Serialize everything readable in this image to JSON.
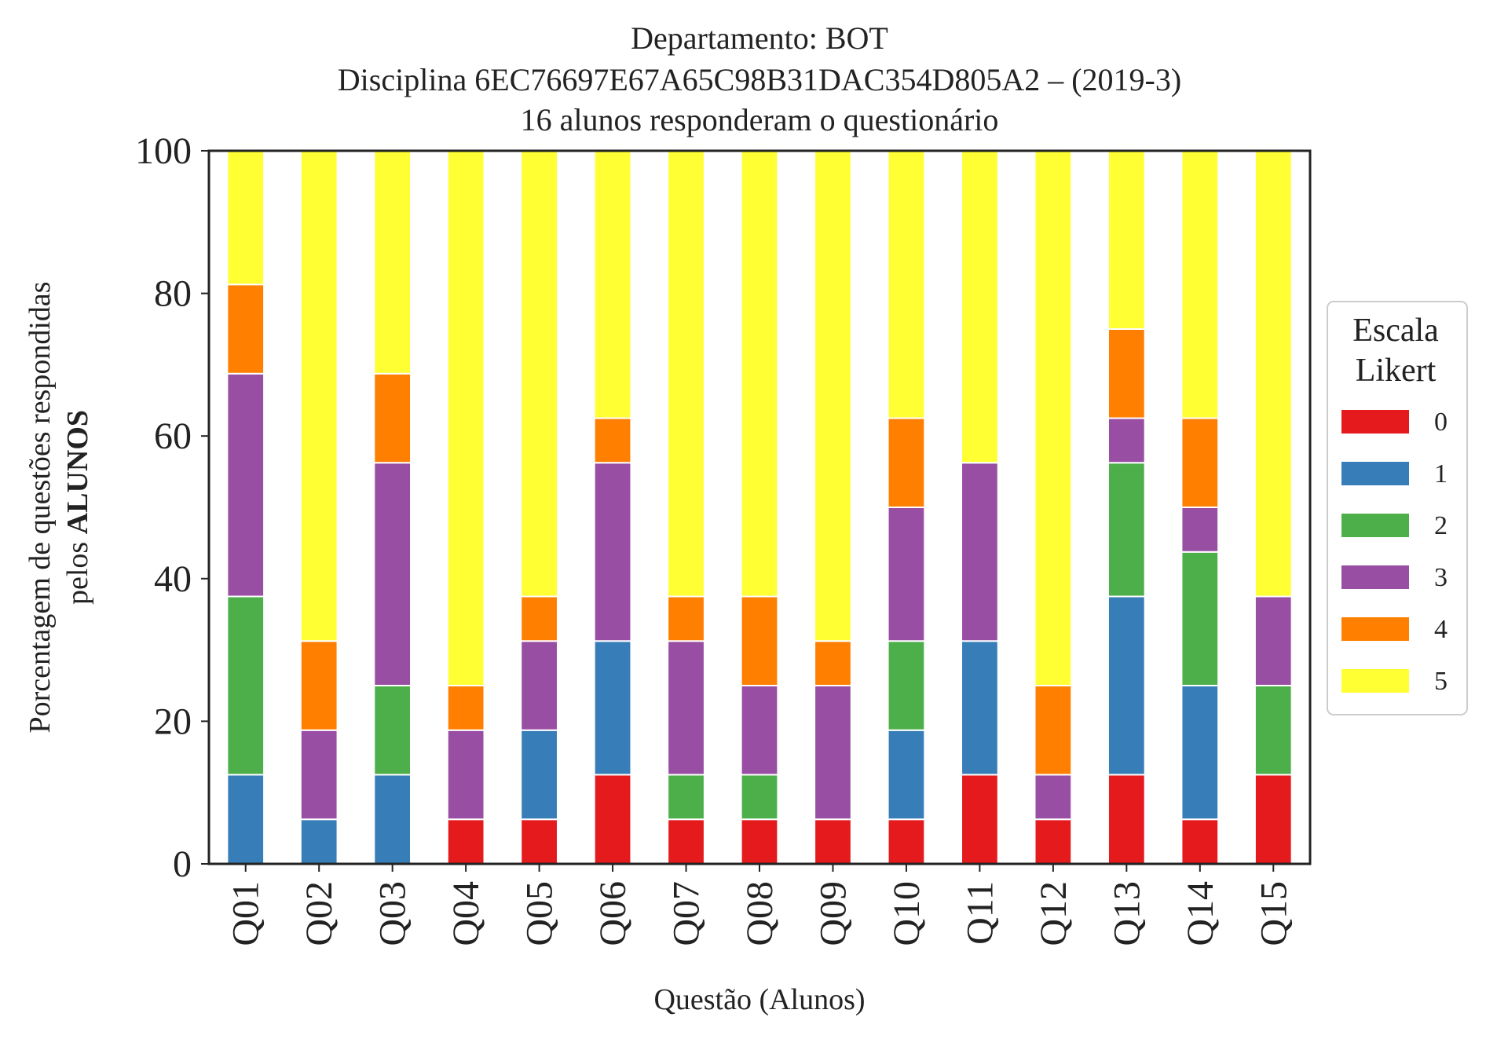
{
  "chart_data": {
    "type": "bar",
    "stacked": true,
    "title_lines": [
      "Departamento: BOT",
      "Disciplina 6EC76697E67A65C98B31DAC354D805A2 – (2019-3)",
      "16 alunos responderam o questionário"
    ],
    "xlabel": "Questão (Alunos)",
    "ylabel_line1": "Porcentagem de questões respondidas",
    "ylabel_line2_prefix": "pelos ",
    "ylabel_line2_bold": "ALUNOS",
    "ylim": [
      0,
      100
    ],
    "yticks": [
      "0",
      "20",
      "40",
      "60",
      "80",
      "100"
    ],
    "grid": false,
    "categories": [
      "Q01",
      "Q02",
      "Q03",
      "Q04",
      "Q05",
      "Q06",
      "Q07",
      "Q08",
      "Q09",
      "Q10",
      "Q11",
      "Q12",
      "Q13",
      "Q14",
      "Q15"
    ],
    "legend": {
      "title_line1": "Escala",
      "title_line2": "Likert",
      "position": "right"
    },
    "series": [
      {
        "name": "0",
        "color": "#e41a1c",
        "values": [
          0,
          0,
          0,
          6.25,
          6.25,
          12.5,
          6.25,
          6.25,
          6.25,
          6.25,
          12.5,
          6.25,
          12.5,
          6.25,
          12.5
        ]
      },
      {
        "name": "1",
        "color": "#377eb8",
        "values": [
          12.5,
          6.25,
          12.5,
          0,
          12.5,
          18.75,
          0,
          0,
          0,
          12.5,
          18.75,
          0,
          25,
          18.75,
          0
        ]
      },
      {
        "name": "2",
        "color": "#4daf4a",
        "values": [
          25,
          0,
          12.5,
          0,
          0,
          0,
          6.25,
          6.25,
          0,
          12.5,
          0,
          0,
          18.75,
          18.75,
          12.5
        ]
      },
      {
        "name": "3",
        "color": "#984ea3",
        "values": [
          31.25,
          12.5,
          31.25,
          12.5,
          12.5,
          25,
          18.75,
          12.5,
          18.75,
          18.75,
          25,
          6.25,
          6.25,
          6.25,
          12.5
        ]
      },
      {
        "name": "4",
        "color": "#ff7f00",
        "values": [
          12.5,
          12.5,
          12.5,
          6.25,
          6.25,
          6.25,
          6.25,
          12.5,
          6.25,
          12.5,
          0,
          12.5,
          12.5,
          12.5,
          0
        ]
      },
      {
        "name": "5",
        "color": "#ffff33",
        "values": [
          18.75,
          68.75,
          31.25,
          75,
          62.5,
          37.5,
          62.5,
          62.5,
          68.75,
          37.5,
          43.75,
          75,
          25,
          37.5,
          62.5
        ]
      }
    ]
  }
}
